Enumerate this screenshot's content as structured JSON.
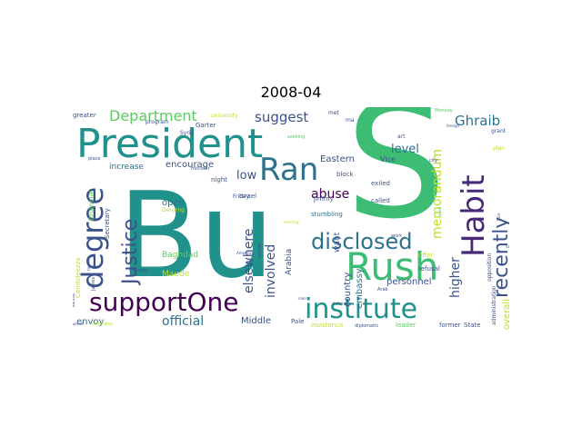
{
  "title": "2008-04",
  "colors": {
    "teal": "#21918c",
    "green": "#3dbc74",
    "lime": "#bddf26",
    "purple": "#482878",
    "navy": "#3b528b",
    "darkblue": "#2c728e",
    "midgreen": "#5ec962",
    "deep": "#440154",
    "yellow": "#fde725"
  },
  "words": [
    "Bu",
    "S",
    "President",
    "Rush",
    "institute",
    "supportOne",
    "Ran",
    "degree",
    "Habit",
    "disclosed",
    "Justice",
    "recently",
    "Department",
    "suggest",
    "Ghraib",
    "elsewhere",
    "memorandum",
    "involved",
    "abuse",
    "higher",
    "official",
    "level",
    "low",
    "personnel",
    "Eastern",
    "encourage",
    "increase",
    "Middle",
    "envoy",
    "open",
    "country",
    "embassy",
    "Baghdad",
    "Maude",
    "overall",
    "want",
    "Arabia",
    "exiled",
    "called",
    "financial",
    "Secretary",
    "Vice",
    "Israel",
    "Jimmy",
    "night",
    "Friday",
    "stumbling",
    "block",
    "greater",
    "Garter",
    "program",
    "Syria",
    "university",
    "met",
    "ma",
    "art",
    "city",
    "plan",
    "grant",
    "Monday",
    "minister",
    "foreign",
    "Denying",
    "place",
    "offer",
    "refusal",
    "Arab",
    "leader",
    "former",
    "State",
    "Pale",
    "insistence",
    "diplomatic",
    "richest",
    "opposition",
    "administration",
    "Condoleezza",
    "James",
    "toured",
    "stranger",
    "world",
    "American",
    "kindness",
    "poorest",
    "Bahrain",
    "good",
    "work",
    "meeting",
    "seeking",
    "men",
    "Rice",
    "saw"
  ]
}
